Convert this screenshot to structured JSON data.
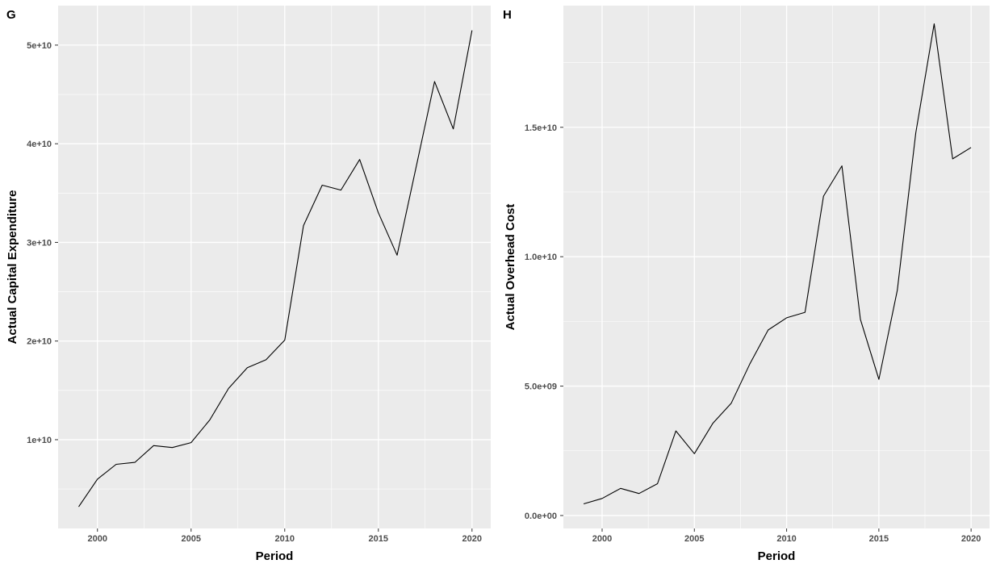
{
  "chart_data": [
    {
      "type": "line",
      "panel_label": "G",
      "xlabel": "Period",
      "ylabel": "Actual Capital Expenditure",
      "xlim": [
        1997.9,
        2021
      ],
      "ylim": [
        1000000000,
        54000000000
      ],
      "x_ticks": [
        2000,
        2005,
        2010,
        2015,
        2020
      ],
      "x_tick_labels": [
        "2000",
        "2005",
        "2010",
        "2015",
        "2020"
      ],
      "y_ticks": [
        10000000000,
        20000000000,
        30000000000,
        40000000000,
        50000000000
      ],
      "y_tick_labels": [
        "1e+10",
        "2e+10",
        "3e+10",
        "4e+10",
        "5e+10"
      ],
      "grid": true,
      "x": [
        1999,
        2000,
        2001,
        2002,
        2003,
        2004,
        2005,
        2006,
        2007,
        2008,
        2009,
        2010,
        2011,
        2012,
        2013,
        2014,
        2015,
        2016,
        2017,
        2018,
        2019,
        2020
      ],
      "values": [
        3200000000,
        6000000000,
        7500000000,
        7700000000,
        9400000000,
        9200000000,
        9700000000,
        12000000000,
        15200000000,
        17300000000,
        18100000000,
        20100000000,
        31700000000,
        35800000000,
        35300000000,
        38400000000,
        33000000000,
        28700000000,
        37500000000,
        46300000000,
        41500000000,
        51500000000
      ]
    },
    {
      "type": "line",
      "panel_label": "H",
      "xlabel": "Period",
      "ylabel": "Actual Overhead Cost",
      "xlim": [
        1997.9,
        2021
      ],
      "ylim": [
        -500000000,
        19700000000
      ],
      "x_ticks": [
        2000,
        2005,
        2010,
        2015,
        2020
      ],
      "x_tick_labels": [
        "2000",
        "2005",
        "2010",
        "2015",
        "2020"
      ],
      "y_ticks": [
        0,
        5000000000,
        10000000000,
        15000000000
      ],
      "y_tick_labels": [
        "0.0e+00",
        "5.0e+09",
        "1.0e+10",
        "1.5e+10"
      ],
      "grid": true,
      "x": [
        1999,
        2000,
        2001,
        2002,
        2003,
        2004,
        2005,
        2006,
        2007,
        2008,
        2009,
        2010,
        2011,
        2012,
        2013,
        2014,
        2015,
        2016,
        2017,
        2018,
        2019,
        2020
      ],
      "values": [
        450000000,
        660000000,
        1050000000,
        850000000,
        1230000000,
        3270000000,
        2390000000,
        3560000000,
        4340000000,
        5850000000,
        7170000000,
        7640000000,
        7850000000,
        12340000000,
        13510000000,
        7580000000,
        5260000000,
        8700000000,
        14780000000,
        19000000000,
        13780000000,
        14220000000
      ]
    }
  ]
}
